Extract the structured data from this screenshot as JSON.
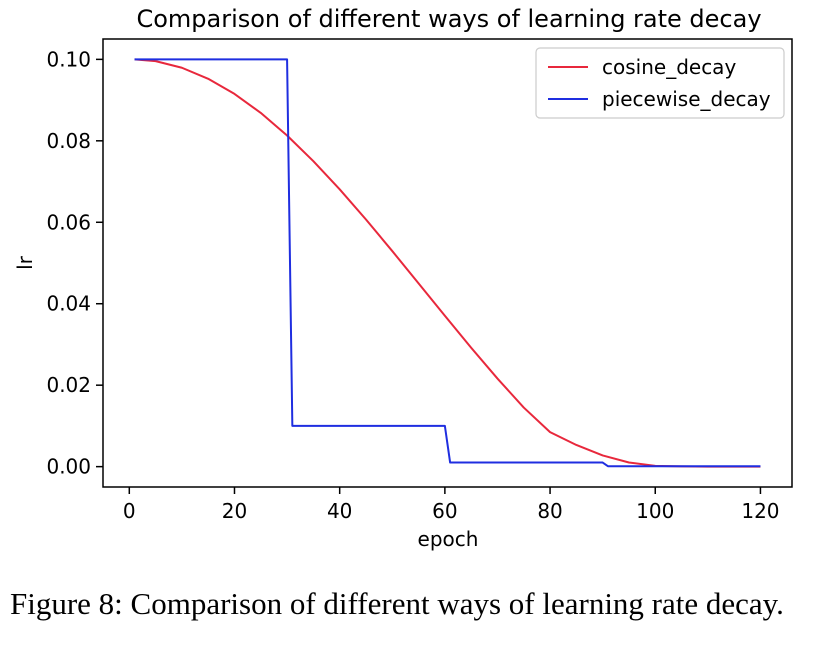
{
  "chart_data": {
    "type": "line",
    "title": "Comparison of different ways of learning rate decay",
    "xlabel": "epoch",
    "ylabel": "lr",
    "xlim": [
      -5,
      126
    ],
    "ylim": [
      -0.005,
      0.105
    ],
    "xticks": [
      0,
      20,
      40,
      60,
      80,
      100,
      120
    ],
    "yticks": [
      0.0,
      0.02,
      0.04,
      0.06,
      0.08,
      0.1
    ],
    "xtick_labels": [
      "0",
      "20",
      "40",
      "60",
      "80",
      "100",
      "120"
    ],
    "ytick_labels": [
      "0.00",
      "0.02",
      "0.04",
      "0.06",
      "0.08",
      "0.10"
    ],
    "legend_position": "top-right",
    "grid": false,
    "series": [
      {
        "name": "cosine_decay",
        "color": "#e8283c",
        "x": [
          1,
          5,
          10,
          15,
          20,
          25,
          30,
          35,
          40,
          45,
          50,
          55,
          60,
          65,
          70,
          75,
          80,
          85,
          90,
          95,
          100,
          105,
          110,
          115,
          120
        ],
        "y": [
          0.1,
          0.09957,
          0.09794,
          0.09523,
          0.09152,
          0.08685,
          0.0813,
          0.075,
          0.06809,
          0.06068,
          0.05293,
          0.045,
          0.03704,
          0.02919,
          0.02162,
          0.0145,
          0.00848,
          0.00532,
          0.00275,
          0.00102,
          0.00019,
          6e-05,
          1e-05,
          0.0,
          0.0
        ]
      },
      {
        "name": "piecewise_decay",
        "color": "#1f2ee0",
        "x": [
          1,
          30,
          31,
          60,
          61,
          90,
          91,
          120
        ],
        "y": [
          0.1,
          0.1,
          0.01,
          0.01,
          0.001,
          0.001,
          0.0001,
          0.0001
        ]
      }
    ]
  },
  "caption": "Figure 8: Comparison of different ways of learning rate decay."
}
